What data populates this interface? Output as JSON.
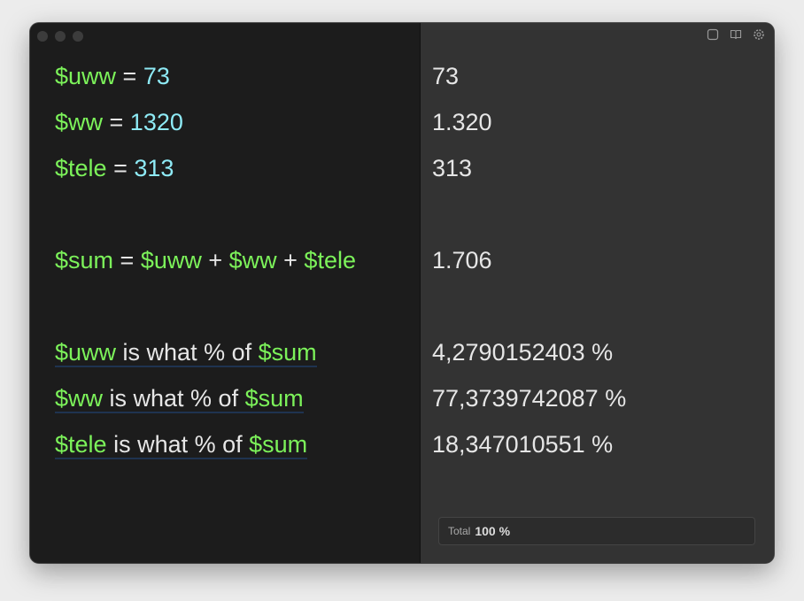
{
  "colors": {
    "variable": "#7cf25a",
    "number": "#8eeaf5",
    "text": "#e6e6e6",
    "editor_bg": "#1c1c1c",
    "results_bg": "#333333"
  },
  "toolbar": {
    "icons": [
      "sidebar-icon",
      "book-icon",
      "gear-icon"
    ]
  },
  "editor": {
    "lines": [
      {
        "tokens": [
          {
            "t": "var",
            "v": "$uww"
          },
          {
            "t": "op",
            "v": " = "
          },
          {
            "t": "num",
            "v": "73"
          }
        ]
      },
      {
        "tokens": [
          {
            "t": "var",
            "v": "$ww"
          },
          {
            "t": "op",
            "v": " = "
          },
          {
            "t": "num",
            "v": "1320"
          }
        ]
      },
      {
        "tokens": [
          {
            "t": "var",
            "v": "$tele"
          },
          {
            "t": "op",
            "v": " = "
          },
          {
            "t": "num",
            "v": "313"
          }
        ]
      },
      {
        "tokens": []
      },
      {
        "tokens": [
          {
            "t": "var",
            "v": "$sum"
          },
          {
            "t": "op",
            "v": " = "
          },
          {
            "t": "var",
            "v": "$uww"
          },
          {
            "t": "op",
            "v": " + "
          },
          {
            "t": "var",
            "v": "$ww"
          },
          {
            "t": "op",
            "v": " + "
          },
          {
            "t": "var",
            "v": "$tele"
          }
        ]
      },
      {
        "tokens": []
      },
      {
        "underline": true,
        "tokens": [
          {
            "t": "var",
            "v": "$uww"
          },
          {
            "t": "txt",
            "v": " is what % of "
          },
          {
            "t": "var",
            "v": "$sum"
          }
        ]
      },
      {
        "underline": true,
        "tokens": [
          {
            "t": "var",
            "v": "$ww"
          },
          {
            "t": "txt",
            "v": " is what % of "
          },
          {
            "t": "var",
            "v": "$sum"
          }
        ]
      },
      {
        "underline": true,
        "tokens": [
          {
            "t": "var",
            "v": "$tele"
          },
          {
            "t": "txt",
            "v": " is what % of "
          },
          {
            "t": "var",
            "v": "$sum"
          }
        ]
      }
    ]
  },
  "results": [
    "73",
    "1.320",
    "313",
    "",
    "1.706",
    "",
    "4,2790152403 %",
    "77,3739742087 %",
    "18,347010551 %"
  ],
  "total": {
    "label": "Total",
    "value": "100 %"
  }
}
